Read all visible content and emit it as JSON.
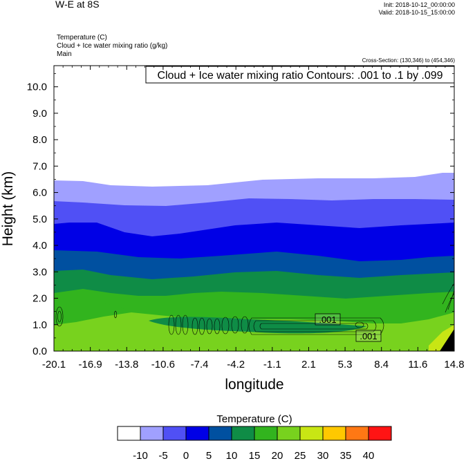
{
  "header": {
    "title": "W-E at 8S",
    "init": "Init: 2018-10-12_00:00:00",
    "valid": "Valid: 2018-10-15_15:00:00",
    "field_1": "Temperature   (C)",
    "field_2": "Cloud + Ice water mixing ratio   (g/kg)",
    "field_3": "Main",
    "cross_section": "Cross-Section: (130,346) to (454,346)",
    "contour_info": "Cloud + Ice water mixing ratio Contours: .001 to .1 by .099"
  },
  "chart_data": {
    "type": "heatmap",
    "xlabel": "longitude",
    "ylabel": "Height (km)",
    "x_ticks": [
      "-20.1",
      "-16.9",
      "-13.8",
      "-10.6",
      "-7.4",
      "-4.2",
      "-1.1",
      "2.1",
      "5.3",
      "8.4",
      "11.6",
      "14.8"
    ],
    "y_ticks": [
      "0.0",
      "1.0",
      "2.0",
      "3.0",
      "4.0",
      "5.0",
      "6.0",
      "7.0",
      "8.0",
      "9.0",
      "10.0"
    ],
    "xlim": [
      -20.1,
      14.8
    ],
    "ylim": [
      0.0,
      10.8
    ],
    "contour_labels": [
      ".001",
      ".001"
    ],
    "colorbar": {
      "title": "Temperature  (C)",
      "ticks": [
        "-10",
        "-5",
        "0",
        "5",
        "10",
        "15",
        "20",
        "25",
        "30",
        "35",
        "40"
      ],
      "colors": [
        "#ffffff",
        "#a0a0ff",
        "#5050f5",
        "#0000e6",
        "#0050a0",
        "#0f8c46",
        "#32b41e",
        "#78d21e",
        "#c8e614",
        "#ffc800",
        "#ff7814",
        "#ff1414"
      ]
    }
  }
}
